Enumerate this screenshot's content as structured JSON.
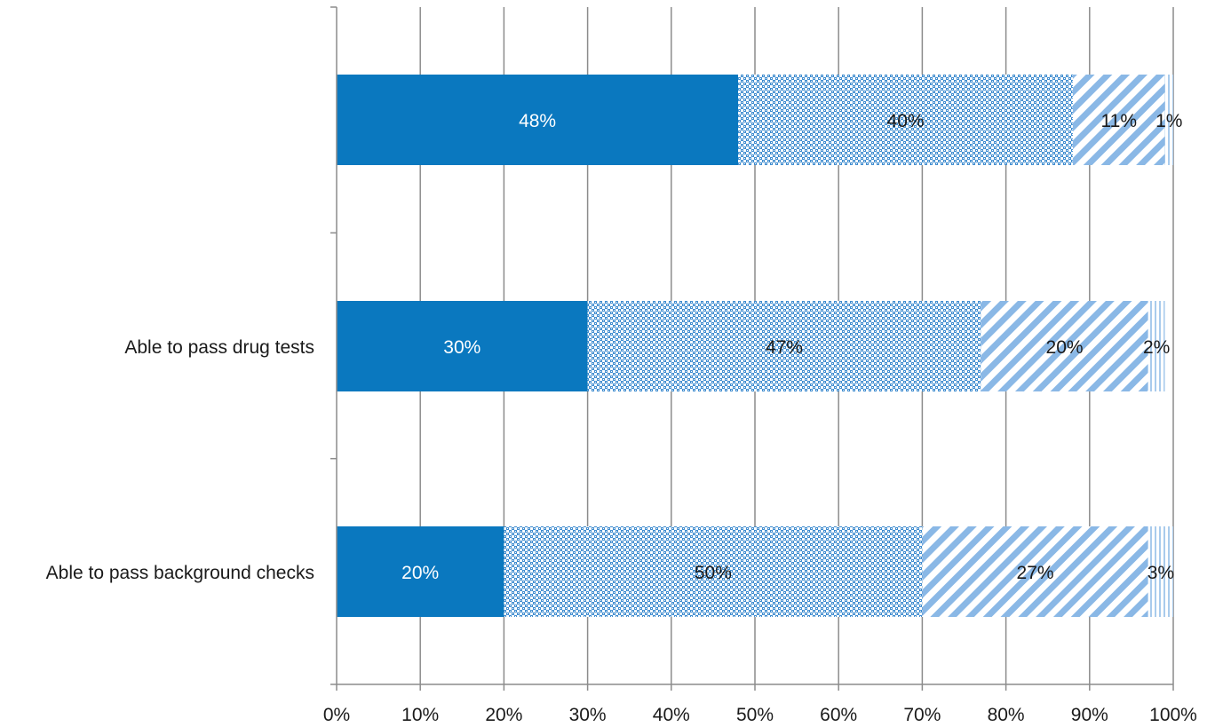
{
  "chart_data": {
    "type": "bar",
    "orientation": "horizontal",
    "stacked": "percent",
    "title": "",
    "xlabel": "",
    "ylabel": "",
    "categories": [
      "",
      "Able to pass drug tests",
      "Able to pass background checks"
    ],
    "series": [
      {
        "values": [
          48,
          30,
          20
        ],
        "color": "#0a78bf",
        "pattern": "solid"
      },
      {
        "values": [
          40,
          47,
          50
        ],
        "color": "#5b9bd5",
        "pattern": "crosshatch"
      },
      {
        "values": [
          11,
          20,
          27
        ],
        "color": "#9dc3e6",
        "pattern": "diagonal"
      },
      {
        "values": [
          1,
          2,
          3
        ],
        "color": "#bdd7ee",
        "pattern": "vertical"
      }
    ],
    "data_labels": [
      [
        "48%",
        "40%",
        "11%",
        "1%"
      ],
      [
        "30%",
        "47%",
        "20%",
        "2%"
      ],
      [
        "20%",
        "50%",
        "27%",
        "3%"
      ]
    ],
    "x_ticks": [
      "0%",
      "10%",
      "20%",
      "30%",
      "40%",
      "50%",
      "60%",
      "70%",
      "80%",
      "90%",
      "100%"
    ],
    "xlim": [
      0,
      100
    ],
    "grid": true,
    "legend": "none"
  }
}
